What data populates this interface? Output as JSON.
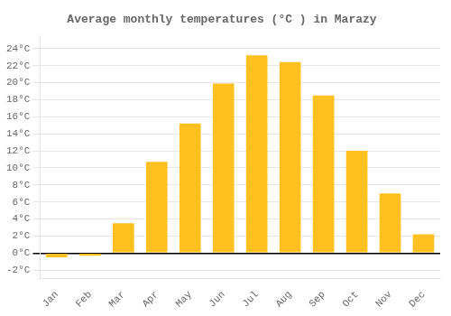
{
  "chart_data": {
    "type": "bar",
    "title": "Average monthly temperatures (°C ) in Marazy",
    "categories": [
      "Jan",
      "Feb",
      "Mar",
      "Apr",
      "May",
      "Jun",
      "Jul",
      "Aug",
      "Sep",
      "Oct",
      "Nov",
      "Dec"
    ],
    "values": [
      -0.5,
      -0.3,
      3.5,
      10.7,
      15.2,
      19.9,
      23.2,
      22.4,
      18.5,
      12.0,
      7.0,
      2.2
    ],
    "color": "#FFC020",
    "ylim": [
      -3,
      25.5
    ],
    "yticks": [
      {
        "value": -2,
        "label": "-2°C"
      },
      {
        "value": 0,
        "label": "0°C"
      },
      {
        "value": 2,
        "label": "2°C"
      },
      {
        "value": 4,
        "label": "4°C"
      },
      {
        "value": 6,
        "label": "6°C"
      },
      {
        "value": 8,
        "label": "8°C"
      },
      {
        "value": 10,
        "label": "10°C"
      },
      {
        "value": 12,
        "label": "12°C"
      },
      {
        "value": 14,
        "label": "14°C"
      },
      {
        "value": 16,
        "label": "16°C"
      },
      {
        "value": 18,
        "label": "18°C"
      },
      {
        "value": 20,
        "label": "20°C"
      },
      {
        "value": 22,
        "label": "22°C"
      },
      {
        "value": 24,
        "label": "24°C"
      }
    ],
    "grid": true
  }
}
